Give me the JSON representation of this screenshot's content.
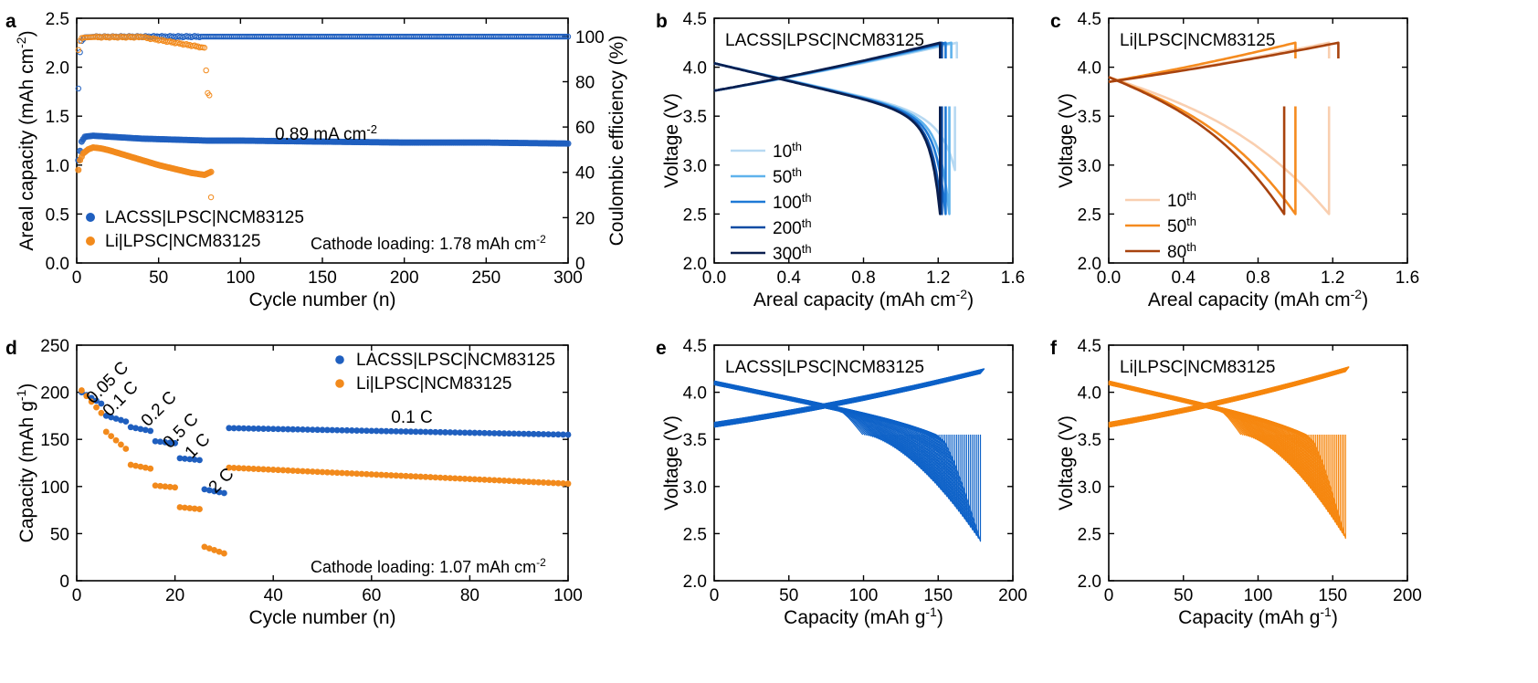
{
  "chart_data": [
    {
      "panel": "a",
      "type": "scatter",
      "xlabel": "Cycle number (n)",
      "ylabel": "Areal capacity (mAh cm⁻²)",
      "y2label": "Coulombic efficiency (%)",
      "xlim": [
        0,
        300
      ],
      "xticks": [
        0,
        50,
        100,
        150,
        200,
        250,
        300
      ],
      "ylim": [
        0,
        2.5
      ],
      "yticks": [
        0.0,
        0.5,
        1.0,
        1.5,
        2.0,
        2.5
      ],
      "y2lim": [
        0,
        108
      ],
      "y2ticks": [
        0,
        20,
        40,
        60,
        80,
        100
      ],
      "annotations": [
        "0.89 mA cm⁻²",
        "Cathode loading: 1.78 mAh cm⁻²"
      ],
      "legend_placement": "bottom-left",
      "series": [
        {
          "name": "LACSS|LPSC|NCM83125",
          "color": "#1f5fbf",
          "kind": "capacity",
          "x": [
            1,
            3,
            5,
            10,
            20,
            40,
            60,
            80,
            100,
            150,
            200,
            250,
            300
          ],
          "y": [
            1.05,
            1.24,
            1.29,
            1.3,
            1.29,
            1.27,
            1.26,
            1.25,
            1.25,
            1.24,
            1.23,
            1.23,
            1.22
          ]
        },
        {
          "name": "LACSS|LPSC|NCM83125",
          "color": "#1f5fbf",
          "kind": "ce",
          "x": [
            1,
            2,
            3,
            5,
            10,
            50,
            100,
            150,
            200,
            250,
            300
          ],
          "y": [
            77,
            93,
            98,
            99.6,
            99.8,
            99.9,
            99.9,
            99.9,
            99.9,
            99.9,
            99.9
          ]
        },
        {
          "name": "Li|LPSC|NCM83125",
          "color": "#f28a1c",
          "kind": "capacity",
          "x": [
            1,
            2,
            4,
            7,
            10,
            15,
            20,
            30,
            40,
            50,
            60,
            70,
            78,
            82
          ],
          "y": [
            0.95,
            1.05,
            1.12,
            1.16,
            1.18,
            1.17,
            1.15,
            1.1,
            1.05,
            1.0,
            0.96,
            0.92,
            0.9,
            0.93
          ]
        },
        {
          "name": "Li|LPSC|NCM83125",
          "color": "#f28a1c",
          "kind": "ce",
          "x": [
            1,
            2,
            3,
            5,
            10,
            40,
            78,
            80,
            81,
            82
          ],
          "y": [
            94,
            98,
            99.3,
            99.5,
            99.7,
            99.7,
            95,
            75,
            74,
            29
          ]
        }
      ]
    },
    {
      "panel": "b",
      "type": "line",
      "xlabel": "Areal capacity (mAh cm⁻²)",
      "ylabel": "Voltage (V)",
      "xlim": [
        0,
        1.6
      ],
      "xticks": [
        0.0,
        0.4,
        0.8,
        1.2,
        1.6
      ],
      "ylim": [
        2.0,
        4.5
      ],
      "yticks": [
        2.0,
        2.5,
        3.0,
        3.5,
        4.0,
        4.5
      ],
      "label": "LACSS|LPSC|NCM83125",
      "series": [
        {
          "name": "10",
          "suffix": "th",
          "color": "#b7d9f2",
          "cap_charge": 1.3,
          "cap_discharge": 1.29,
          "v_end": 2.95
        },
        {
          "name": "50",
          "suffix": "th",
          "color": "#5fb2ec",
          "cap_charge": 1.27,
          "cap_discharge": 1.26
        },
        {
          "name": "100",
          "suffix": "th",
          "color": "#1e79d6",
          "cap_charge": 1.24,
          "cap_discharge": 1.24
        },
        {
          "name": "200",
          "suffix": "th",
          "color": "#0d4ca3",
          "cap_charge": 1.22,
          "cap_discharge": 1.22
        },
        {
          "name": "300",
          "suffix": "th",
          "color": "#0a1f4f",
          "cap_charge": 1.21,
          "cap_discharge": 1.21
        }
      ]
    },
    {
      "panel": "c",
      "type": "line",
      "xlabel": "Areal capacity (mAh cm⁻²)",
      "ylabel": "Voltage (V)",
      "xlim": [
        0,
        1.6
      ],
      "xticks": [
        0.0,
        0.4,
        0.8,
        1.2,
        1.6
      ],
      "ylim": [
        2.0,
        4.5
      ],
      "yticks": [
        2.0,
        2.5,
        3.0,
        3.5,
        4.0,
        4.5
      ],
      "label": "Li|LPSC|NCM83125",
      "series": [
        {
          "name": "10",
          "suffix": "th",
          "color": "#f9cfb0",
          "cap_charge": 1.18,
          "cap_discharge": 1.18
        },
        {
          "name": "50",
          "suffix": "th",
          "color": "#f58b1f",
          "cap_charge": 1.0,
          "cap_discharge": 1.0
        },
        {
          "name": "80",
          "suffix": "th",
          "color": "#a8430e",
          "cap_charge": 1.23,
          "cap_discharge": 0.94
        }
      ]
    },
    {
      "panel": "d",
      "type": "scatter",
      "xlabel": "Cycle number (n)",
      "ylabel": "Capacity (mAh g⁻¹)",
      "xlim": [
        0,
        100
      ],
      "xticks": [
        0,
        20,
        40,
        60,
        80,
        100
      ],
      "ylim": [
        0,
        250
      ],
      "yticks": [
        0,
        50,
        100,
        150,
        200,
        250
      ],
      "rate_labels": [
        "0.05 C",
        "0.1 C",
        "0.2 C",
        "0.5 C",
        "1 C",
        "2 C",
        "0.1 C"
      ],
      "annotation": "Cathode loading: 1.07 mAh cm⁻²",
      "legend_placement": "top-right",
      "segments": [
        {
          "from": 1,
          "to": 5,
          "c": [
            200,
            188
          ],
          "l": [
            202,
            178
          ]
        },
        {
          "from": 6,
          "to": 10,
          "c": [
            175,
            169
          ],
          "l": [
            158,
            140
          ]
        },
        {
          "from": 11,
          "to": 15,
          "c": [
            163,
            159
          ],
          "l": [
            123,
            119
          ]
        },
        {
          "from": 16,
          "to": 20,
          "c": [
            148,
            146
          ],
          "l": [
            101,
            99
          ]
        },
        {
          "from": 21,
          "to": 25,
          "c": [
            130,
            128
          ],
          "l": [
            78,
            76
          ]
        },
        {
          "from": 26,
          "to": 30,
          "c": [
            97,
            93
          ],
          "l": [
            36,
            29
          ]
        },
        {
          "from": 31,
          "to": 100,
          "c": [
            162,
            155
          ],
          "l": [
            120,
            103
          ]
        }
      ],
      "series": [
        {
          "name": "LACSS|LPSC|NCM83125",
          "color": "#1f5fbf"
        },
        {
          "name": "Li|LPSC|NCM83125",
          "color": "#f28a1c"
        }
      ]
    },
    {
      "panel": "e",
      "type": "line",
      "xlabel": "Capacity (mAh g⁻¹)",
      "ylabel": "Voltage (V)",
      "xlim": [
        0,
        200
      ],
      "xticks": [
        0,
        50,
        100,
        150,
        200
      ],
      "ylim": [
        2.0,
        4.5
      ],
      "yticks": [
        2.0,
        2.5,
        3.0,
        3.5,
        4.0,
        4.5
      ],
      "label": "LACSS|LPSC|NCM83125",
      "color": "#0e62c8",
      "cap_max": 181,
      "v_charge_top": 4.25,
      "v_min": 2.42
    },
    {
      "panel": "f",
      "type": "line",
      "xlabel": "Capacity (mAh g⁻¹)",
      "ylabel": "Voltage (V)",
      "xlim": [
        0,
        200
      ],
      "xticks": [
        0,
        50,
        100,
        150,
        200
      ],
      "ylim": [
        2.0,
        4.5
      ],
      "yticks": [
        2.0,
        2.5,
        3.0,
        3.5,
        4.0,
        4.5
      ],
      "label": "Li|LPSC|NCM83125",
      "color": "#f6870f",
      "cap_max": 161,
      "v_charge_top": 4.27,
      "v_min": 2.45
    }
  ]
}
